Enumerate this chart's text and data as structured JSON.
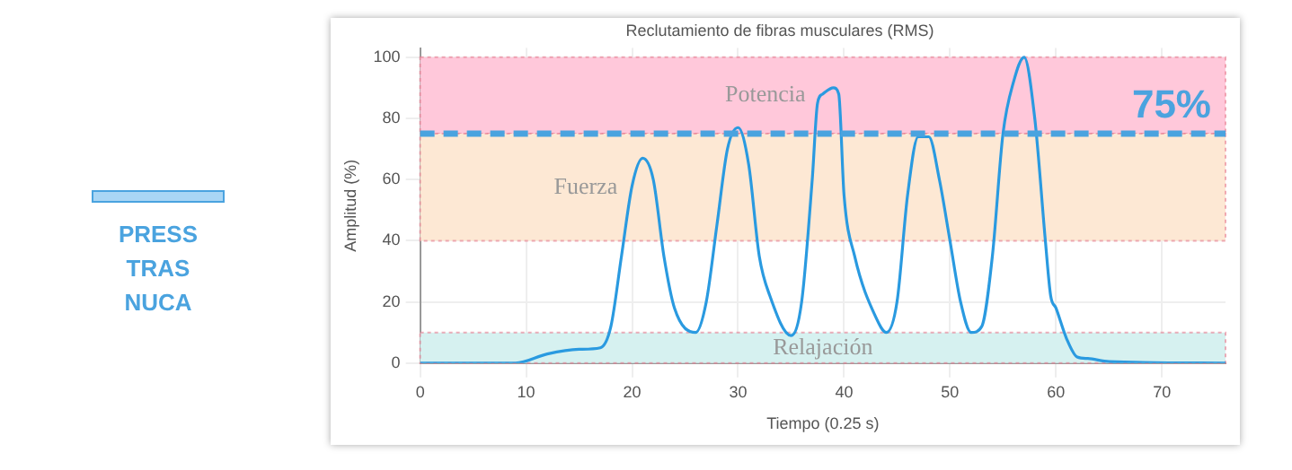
{
  "chart_data": {
    "type": "line",
    "title": "Reclutamiento de fibras musculares (RMS)",
    "subtitle": "PRESS TRAS NUCA",
    "xlabel": "Tiempo (0.25 s)",
    "ylabel": "Amplitud (%)",
    "xlim": [
      0,
      76
    ],
    "xticks": [
      0,
      10,
      20,
      30,
      40,
      50,
      60,
      70
    ],
    "ylim": [
      0,
      103
    ],
    "yticks": [
      0,
      20,
      40,
      60,
      80,
      100
    ],
    "grid": true,
    "legend": false,
    "marker": "none",
    "line_style": "solid",
    "series": [
      {
        "color": "#2a9ae0",
        "x": [
          0,
          9,
          12,
          15,
          17,
          18,
          19,
          20,
          21,
          22,
          23,
          24,
          26,
          27,
          28,
          29,
          30,
          31,
          32,
          33,
          35,
          36,
          37,
          37.5,
          38,
          39,
          39.5,
          40,
          41,
          43,
          44,
          45,
          46,
          47,
          48,
          49,
          50,
          51,
          52,
          53,
          54,
          55,
          56,
          57,
          58,
          59,
          59.5,
          60,
          61,
          62,
          63,
          65,
          76
        ],
        "values": [
          0,
          0,
          3,
          4.5,
          5,
          12,
          35,
          58,
          67,
          60,
          35,
          18,
          10,
          20,
          45,
          70,
          77,
          65,
          35,
          22,
          9,
          20,
          60,
          85,
          88,
          90,
          88,
          55,
          35,
          15,
          10,
          20,
          55,
          74,
          74,
          60,
          40,
          20,
          10,
          12,
          35,
          75,
          92,
          100,
          80,
          40,
          22,
          18,
          8,
          2,
          1.5,
          0.5,
          0
        ]
      }
    ],
    "bands": [
      {
        "axis": "y",
        "from": 75,
        "to": 100,
        "label": "Potencia",
        "color": "#ffc8da"
      },
      {
        "axis": "y",
        "from": 40,
        "to": 75,
        "label": "Fuerza",
        "color": "#fde8d4"
      },
      {
        "axis": "y",
        "from": 0,
        "to": 10,
        "label": "Relajación",
        "color": "#d6f1f0"
      }
    ],
    "ref_lines": [
      {
        "axis": "y",
        "value": 75,
        "label": "75%",
        "color": "#4aa3df",
        "line_style": "dashed"
      }
    ]
  }
}
